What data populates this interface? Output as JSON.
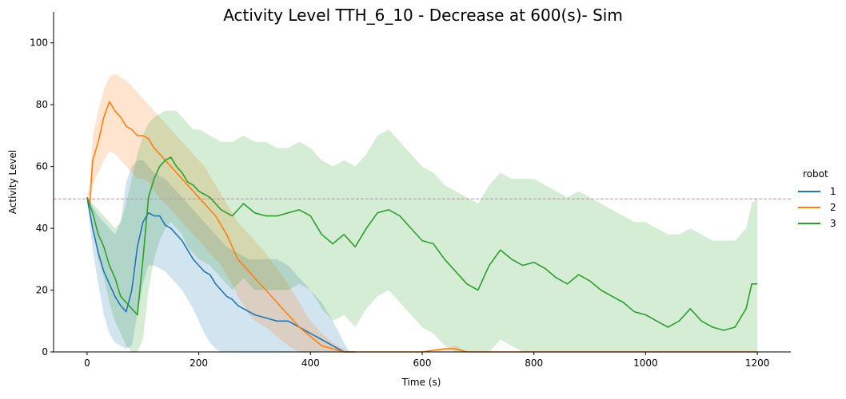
{
  "chart_data": {
    "type": "line",
    "title": "Activity Level TTH_6_10 - Decrease at 600(s)- Sim",
    "xlabel": "Time (s)",
    "ylabel": "Activity Level",
    "xlim": [
      -60,
      1260
    ],
    "ylim": [
      0,
      110
    ],
    "xticks": [
      0,
      200,
      400,
      600,
      800,
      1000,
      1200
    ],
    "yticks": [
      0,
      20,
      40,
      60,
      80,
      100
    ],
    "grid": false,
    "legend": {
      "title": "robot",
      "placement": "right"
    },
    "reference_line": {
      "y": 49.5,
      "style": "dashed",
      "color": "#e377c2"
    },
    "series": [
      {
        "name": "1",
        "color": "#1f77b4",
        "x": [
          0,
          10,
          20,
          30,
          40,
          50,
          60,
          70,
          80,
          90,
          100,
          110,
          120,
          130,
          140,
          150,
          160,
          170,
          180,
          190,
          200,
          210,
          220,
          230,
          240,
          250,
          260,
          270,
          280,
          290,
          300,
          320,
          340,
          360,
          380,
          400,
          420,
          440,
          460,
          470,
          480
        ],
        "y": [
          50,
          40,
          32,
          26,
          22,
          18,
          15,
          13,
          20,
          34,
          42,
          45,
          44,
          44,
          41,
          40,
          38,
          36,
          33,
          30,
          28,
          26,
          25,
          22,
          20,
          18,
          17,
          15,
          14,
          13,
          12,
          11,
          10,
          10,
          8,
          6,
          4,
          2,
          0,
          0,
          0
        ],
        "upper": [
          50,
          47,
          44,
          42,
          40,
          38,
          42,
          55,
          60,
          62,
          62,
          60,
          58,
          57,
          56,
          54,
          52,
          50,
          48,
          46,
          44,
          42,
          40,
          38,
          36,
          34,
          33,
          32,
          31,
          30,
          30,
          30,
          30,
          28,
          24,
          20,
          16,
          10,
          3,
          0,
          0
        ],
        "lower": [
          50,
          33,
          22,
          12,
          6,
          3,
          2,
          1,
          2,
          12,
          22,
          28,
          28,
          27,
          26,
          24,
          22,
          20,
          17,
          14,
          10,
          6,
          3,
          1,
          0,
          0,
          0,
          0,
          0,
          0,
          0,
          0,
          0,
          0,
          0,
          0,
          0,
          0,
          0,
          0,
          0
        ]
      },
      {
        "name": "2",
        "color": "#ff7f0e",
        "x": [
          0,
          5,
          10,
          20,
          30,
          40,
          50,
          60,
          70,
          80,
          90,
          100,
          110,
          120,
          130,
          140,
          150,
          160,
          170,
          180,
          190,
          200,
          210,
          220,
          230,
          240,
          250,
          260,
          270,
          280,
          290,
          300,
          320,
          340,
          360,
          380,
          400,
          420,
          440,
          460,
          470,
          480,
          600,
          640,
          660,
          680,
          700,
          800,
          1000,
          1200
        ],
        "y": [
          50,
          48,
          62,
          68,
          76,
          81,
          78,
          76,
          73,
          72,
          70,
          70,
          69,
          66,
          64,
          62,
          60,
          58,
          56,
          54,
          52,
          50,
          48,
          46,
          44,
          41,
          38,
          34,
          30,
          28,
          26,
          24,
          20,
          16,
          12,
          8,
          5,
          2,
          1,
          0,
          0,
          0,
          0,
          1,
          1,
          0,
          0,
          0,
          0,
          0
        ],
        "upper": [
          50,
          55,
          70,
          78,
          85,
          89,
          90,
          89,
          88,
          86,
          84,
          82,
          80,
          78,
          76,
          74,
          72,
          70,
          68,
          66,
          64,
          62,
          60,
          57,
          54,
          51,
          48,
          45,
          42,
          40,
          38,
          36,
          32,
          27,
          22,
          16,
          10,
          6,
          3,
          1,
          0,
          0,
          0,
          1,
          2,
          0,
          0,
          0,
          0,
          0
        ],
        "lower": [
          50,
          45,
          54,
          58,
          62,
          65,
          64,
          62,
          60,
          58,
          56,
          56,
          55,
          52,
          50,
          48,
          46,
          44,
          42,
          40,
          38,
          36,
          34,
          32,
          30,
          28,
          25,
          22,
          18,
          15,
          12,
          10,
          8,
          5,
          2,
          0,
          0,
          0,
          0,
          0,
          0,
          0,
          0,
          0,
          0,
          0,
          0,
          0,
          0,
          0
        ]
      },
      {
        "name": "3",
        "color": "#2ca02c",
        "x": [
          0,
          10,
          20,
          30,
          40,
          50,
          60,
          70,
          80,
          90,
          100,
          110,
          120,
          130,
          140,
          150,
          160,
          170,
          180,
          190,
          200,
          220,
          240,
          260,
          280,
          300,
          320,
          340,
          360,
          380,
          400,
          420,
          440,
          460,
          480,
          500,
          520,
          540,
          560,
          580,
          600,
          620,
          640,
          660,
          680,
          700,
          720,
          740,
          760,
          780,
          800,
          820,
          840,
          860,
          880,
          900,
          920,
          940,
          960,
          980,
          1000,
          1020,
          1040,
          1060,
          1080,
          1100,
          1120,
          1140,
          1160,
          1180,
          1190,
          1200
        ],
        "y": [
          50,
          45,
          38,
          34,
          28,
          24,
          18,
          16,
          14,
          12,
          30,
          50,
          56,
          60,
          62,
          63,
          60,
          58,
          55,
          54,
          52,
          50,
          46,
          44,
          48,
          45,
          44,
          44,
          45,
          46,
          44,
          38,
          35,
          38,
          34,
          40,
          45,
          46,
          44,
          40,
          36,
          35,
          30,
          26,
          22,
          20,
          28,
          33,
          30,
          28,
          29,
          27,
          24,
          22,
          25,
          23,
          20,
          18,
          16,
          13,
          12,
          10,
          8,
          10,
          14,
          10,
          8,
          7,
          8,
          14,
          22,
          22
        ],
        "upper": [
          50,
          48,
          46,
          44,
          42,
          40,
          42,
          48,
          56,
          64,
          70,
          74,
          76,
          77,
          78,
          78,
          78,
          76,
          74,
          72,
          72,
          70,
          68,
          68,
          70,
          68,
          68,
          66,
          66,
          68,
          66,
          62,
          60,
          62,
          60,
          64,
          70,
          72,
          68,
          64,
          60,
          58,
          54,
          52,
          50,
          48,
          54,
          58,
          56,
          56,
          56,
          54,
          52,
          50,
          52,
          50,
          48,
          46,
          44,
          42,
          42,
          40,
          38,
          38,
          40,
          38,
          36,
          36,
          36,
          40,
          48,
          50
        ],
        "lower": [
          50,
          42,
          30,
          24,
          16,
          10,
          6,
          2,
          0,
          0,
          4,
          20,
          30,
          36,
          40,
          42,
          40,
          38,
          34,
          32,
          30,
          28,
          24,
          20,
          24,
          20,
          20,
          20,
          20,
          22,
          20,
          14,
          10,
          12,
          8,
          14,
          18,
          20,
          16,
          12,
          8,
          6,
          2,
          0,
          0,
          0,
          0,
          4,
          2,
          0,
          0,
          0,
          0,
          0,
          0,
          0,
          0,
          0,
          0,
          0,
          0,
          0,
          0,
          0,
          0,
          0,
          0,
          0,
          0,
          0,
          0,
          0
        ]
      }
    ]
  }
}
